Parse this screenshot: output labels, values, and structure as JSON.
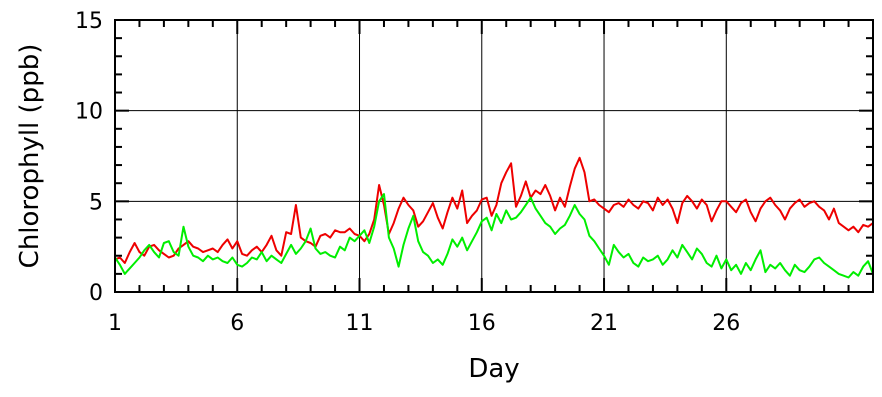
{
  "chart_data": {
    "type": "line",
    "xlabel": "Day",
    "ylabel": "Chlorophyll (ppb)",
    "xlim": [
      1,
      32
    ],
    "ylim": [
      0,
      15
    ],
    "x_ticks": [
      1,
      6,
      11,
      16,
      21,
      26
    ],
    "x_tick_labels": [
      "1",
      "6",
      "11",
      "16",
      "21",
      "26"
    ],
    "y_ticks": [
      0,
      5,
      10,
      15
    ],
    "y_tick_labels": [
      "0",
      "5",
      "10",
      "15"
    ],
    "grid": true,
    "legend": "none",
    "series": [
      {
        "color": "#ee0000",
        "points": [
          [
            1.0,
            1.8
          ],
          [
            1.2,
            1.9
          ],
          [
            1.4,
            1.6
          ],
          [
            1.6,
            2.2
          ],
          [
            1.8,
            2.7
          ],
          [
            2.0,
            2.2
          ],
          [
            2.2,
            2.0
          ],
          [
            2.4,
            2.5
          ],
          [
            2.6,
            2.6
          ],
          [
            2.8,
            2.3
          ],
          [
            3.0,
            2.1
          ],
          [
            3.2,
            1.9
          ],
          [
            3.4,
            2.0
          ],
          [
            3.6,
            2.4
          ],
          [
            3.8,
            2.6
          ],
          [
            4.0,
            2.8
          ],
          [
            4.2,
            2.5
          ],
          [
            4.4,
            2.4
          ],
          [
            4.6,
            2.2
          ],
          [
            4.8,
            2.3
          ],
          [
            5.0,
            2.4
          ],
          [
            5.2,
            2.2
          ],
          [
            5.4,
            2.6
          ],
          [
            5.6,
            2.9
          ],
          [
            5.8,
            2.4
          ],
          [
            6.0,
            2.8
          ],
          [
            6.2,
            2.1
          ],
          [
            6.4,
            2.0
          ],
          [
            6.6,
            2.3
          ],
          [
            6.8,
            2.5
          ],
          [
            7.0,
            2.2
          ],
          [
            7.2,
            2.6
          ],
          [
            7.4,
            3.1
          ],
          [
            7.6,
            2.3
          ],
          [
            7.8,
            2.0
          ],
          [
            8.0,
            3.3
          ],
          [
            8.2,
            3.2
          ],
          [
            8.4,
            4.8
          ],
          [
            8.6,
            3.0
          ],
          [
            8.8,
            2.8
          ],
          [
            9.0,
            2.7
          ],
          [
            9.2,
            2.5
          ],
          [
            9.4,
            3.1
          ],
          [
            9.6,
            3.2
          ],
          [
            9.8,
            3.0
          ],
          [
            10.0,
            3.4
          ],
          [
            10.2,
            3.3
          ],
          [
            10.4,
            3.3
          ],
          [
            10.6,
            3.5
          ],
          [
            10.8,
            3.2
          ],
          [
            11.0,
            3.1
          ],
          [
            11.2,
            2.8
          ],
          [
            11.4,
            3.2
          ],
          [
            11.6,
            4.0
          ],
          [
            11.8,
            5.9
          ],
          [
            12.0,
            4.8
          ],
          [
            12.2,
            3.2
          ],
          [
            12.4,
            3.8
          ],
          [
            12.6,
            4.6
          ],
          [
            12.8,
            5.2
          ],
          [
            13.0,
            4.8
          ],
          [
            13.2,
            4.5
          ],
          [
            13.4,
            3.6
          ],
          [
            13.6,
            3.9
          ],
          [
            13.8,
            4.4
          ],
          [
            14.0,
            4.9
          ],
          [
            14.2,
            4.1
          ],
          [
            14.4,
            3.5
          ],
          [
            14.6,
            4.4
          ],
          [
            14.8,
            5.2
          ],
          [
            15.0,
            4.6
          ],
          [
            15.2,
            5.6
          ],
          [
            15.4,
            3.8
          ],
          [
            15.6,
            4.2
          ],
          [
            15.8,
            4.5
          ],
          [
            16.0,
            5.1
          ],
          [
            16.2,
            5.2
          ],
          [
            16.4,
            4.2
          ],
          [
            16.6,
            4.8
          ],
          [
            16.8,
            6.0
          ],
          [
            17.0,
            6.6
          ],
          [
            17.2,
            7.1
          ],
          [
            17.4,
            4.7
          ],
          [
            17.6,
            5.3
          ],
          [
            17.8,
            6.1
          ],
          [
            18.0,
            5.2
          ],
          [
            18.2,
            5.6
          ],
          [
            18.4,
            5.4
          ],
          [
            18.6,
            5.9
          ],
          [
            18.8,
            5.3
          ],
          [
            19.0,
            4.5
          ],
          [
            19.2,
            5.2
          ],
          [
            19.4,
            4.7
          ],
          [
            19.6,
            5.8
          ],
          [
            19.8,
            6.8
          ],
          [
            20.0,
            7.4
          ],
          [
            20.2,
            6.6
          ],
          [
            20.4,
            5.0
          ],
          [
            20.6,
            5.1
          ],
          [
            20.8,
            4.8
          ],
          [
            21.0,
            4.6
          ],
          [
            21.2,
            4.4
          ],
          [
            21.4,
            4.8
          ],
          [
            21.6,
            4.9
          ],
          [
            21.8,
            4.7
          ],
          [
            22.0,
            5.1
          ],
          [
            22.2,
            4.8
          ],
          [
            22.4,
            4.6
          ],
          [
            22.6,
            5.0
          ],
          [
            22.8,
            4.9
          ],
          [
            23.0,
            4.5
          ],
          [
            23.2,
            5.2
          ],
          [
            23.4,
            4.8
          ],
          [
            23.6,
            5.1
          ],
          [
            23.8,
            4.6
          ],
          [
            24.0,
            3.8
          ],
          [
            24.2,
            4.9
          ],
          [
            24.4,
            5.3
          ],
          [
            24.6,
            5.0
          ],
          [
            24.8,
            4.6
          ],
          [
            25.0,
            5.1
          ],
          [
            25.2,
            4.8
          ],
          [
            25.4,
            3.9
          ],
          [
            25.6,
            4.5
          ],
          [
            25.8,
            5.0
          ],
          [
            26.0,
            5.0
          ],
          [
            26.2,
            4.7
          ],
          [
            26.4,
            4.4
          ],
          [
            26.6,
            4.9
          ],
          [
            26.8,
            5.1
          ],
          [
            27.0,
            4.4
          ],
          [
            27.2,
            3.9
          ],
          [
            27.4,
            4.6
          ],
          [
            27.6,
            5.0
          ],
          [
            27.8,
            5.2
          ],
          [
            28.0,
            4.8
          ],
          [
            28.2,
            4.5
          ],
          [
            28.4,
            4.0
          ],
          [
            28.6,
            4.6
          ],
          [
            28.8,
            4.9
          ],
          [
            29.0,
            5.1
          ],
          [
            29.2,
            4.7
          ],
          [
            29.4,
            4.9
          ],
          [
            29.6,
            5.0
          ],
          [
            29.8,
            4.7
          ],
          [
            30.0,
            4.5
          ],
          [
            30.2,
            4.0
          ],
          [
            30.4,
            4.6
          ],
          [
            30.6,
            3.8
          ],
          [
            30.8,
            3.6
          ],
          [
            31.0,
            3.4
          ],
          [
            31.2,
            3.6
          ],
          [
            31.4,
            3.3
          ],
          [
            31.6,
            3.7
          ],
          [
            31.8,
            3.6
          ],
          [
            32.0,
            3.8
          ]
        ]
      },
      {
        "color": "#00ee00",
        "points": [
          [
            1.0,
            1.9
          ],
          [
            1.2,
            1.5
          ],
          [
            1.4,
            1.0
          ],
          [
            1.6,
            1.3
          ],
          [
            1.8,
            1.6
          ],
          [
            2.0,
            1.9
          ],
          [
            2.2,
            2.3
          ],
          [
            2.4,
            2.6
          ],
          [
            2.6,
            2.2
          ],
          [
            2.8,
            1.9
          ],
          [
            3.0,
            2.7
          ],
          [
            3.2,
            2.8
          ],
          [
            3.4,
            2.2
          ],
          [
            3.6,
            2.0
          ],
          [
            3.8,
            3.6
          ],
          [
            4.0,
            2.5
          ],
          [
            4.2,
            2.0
          ],
          [
            4.4,
            1.9
          ],
          [
            4.6,
            1.7
          ],
          [
            4.8,
            2.0
          ],
          [
            5.0,
            1.8
          ],
          [
            5.2,
            1.9
          ],
          [
            5.4,
            1.7
          ],
          [
            5.6,
            1.6
          ],
          [
            5.8,
            1.9
          ],
          [
            6.0,
            1.5
          ],
          [
            6.2,
            1.4
          ],
          [
            6.4,
            1.6
          ],
          [
            6.6,
            1.9
          ],
          [
            6.8,
            1.8
          ],
          [
            7.0,
            2.2
          ],
          [
            7.2,
            1.7
          ],
          [
            7.4,
            2.0
          ],
          [
            7.6,
            1.8
          ],
          [
            7.8,
            1.6
          ],
          [
            8.0,
            2.1
          ],
          [
            8.2,
            2.6
          ],
          [
            8.4,
            2.1
          ],
          [
            8.6,
            2.4
          ],
          [
            8.8,
            2.8
          ],
          [
            9.0,
            3.5
          ],
          [
            9.2,
            2.4
          ],
          [
            9.4,
            2.1
          ],
          [
            9.6,
            2.2
          ],
          [
            9.8,
            2.0
          ],
          [
            10.0,
            1.9
          ],
          [
            10.2,
            2.5
          ],
          [
            10.4,
            2.3
          ],
          [
            10.6,
            3.0
          ],
          [
            10.8,
            2.8
          ],
          [
            11.0,
            3.1
          ],
          [
            11.2,
            3.4
          ],
          [
            11.4,
            2.7
          ],
          [
            11.6,
            3.6
          ],
          [
            11.8,
            5.0
          ],
          [
            12.0,
            5.4
          ],
          [
            12.2,
            3.0
          ],
          [
            12.4,
            2.4
          ],
          [
            12.6,
            1.4
          ],
          [
            12.8,
            2.6
          ],
          [
            13.0,
            3.5
          ],
          [
            13.2,
            4.2
          ],
          [
            13.4,
            2.8
          ],
          [
            13.6,
            2.2
          ],
          [
            13.8,
            2.0
          ],
          [
            14.0,
            1.6
          ],
          [
            14.2,
            1.8
          ],
          [
            14.4,
            1.5
          ],
          [
            14.6,
            2.1
          ],
          [
            14.8,
            2.9
          ],
          [
            15.0,
            2.5
          ],
          [
            15.2,
            3.0
          ],
          [
            15.4,
            2.3
          ],
          [
            15.6,
            2.8
          ],
          [
            15.8,
            3.3
          ],
          [
            16.0,
            3.9
          ],
          [
            16.2,
            4.1
          ],
          [
            16.4,
            3.4
          ],
          [
            16.6,
            4.3
          ],
          [
            16.8,
            3.8
          ],
          [
            17.0,
            4.5
          ],
          [
            17.2,
            4.0
          ],
          [
            17.4,
            4.1
          ],
          [
            17.6,
            4.4
          ],
          [
            17.8,
            4.8
          ],
          [
            18.0,
            5.2
          ],
          [
            18.2,
            4.6
          ],
          [
            18.4,
            4.2
          ],
          [
            18.6,
            3.8
          ],
          [
            18.8,
            3.6
          ],
          [
            19.0,
            3.2
          ],
          [
            19.2,
            3.5
          ],
          [
            19.4,
            3.7
          ],
          [
            19.6,
            4.2
          ],
          [
            19.8,
            4.8
          ],
          [
            20.0,
            4.3
          ],
          [
            20.2,
            4.0
          ],
          [
            20.4,
            3.1
          ],
          [
            20.6,
            2.8
          ],
          [
            20.8,
            2.4
          ],
          [
            21.0,
            2.0
          ],
          [
            21.2,
            1.5
          ],
          [
            21.4,
            2.6
          ],
          [
            21.6,
            2.2
          ],
          [
            21.8,
            1.9
          ],
          [
            22.0,
            2.1
          ],
          [
            22.2,
            1.6
          ],
          [
            22.4,
            1.4
          ],
          [
            22.6,
            1.9
          ],
          [
            22.8,
            1.7
          ],
          [
            23.0,
            1.8
          ],
          [
            23.2,
            2.0
          ],
          [
            23.4,
            1.5
          ],
          [
            23.6,
            1.8
          ],
          [
            23.8,
            2.3
          ],
          [
            24.0,
            1.9
          ],
          [
            24.2,
            2.6
          ],
          [
            24.4,
            2.2
          ],
          [
            24.6,
            1.8
          ],
          [
            24.8,
            2.4
          ],
          [
            25.0,
            2.1
          ],
          [
            25.2,
            1.6
          ],
          [
            25.4,
            1.4
          ],
          [
            25.6,
            2.0
          ],
          [
            25.8,
            1.3
          ],
          [
            26.0,
            1.8
          ],
          [
            26.2,
            1.2
          ],
          [
            26.4,
            1.5
          ],
          [
            26.6,
            1.0
          ],
          [
            26.8,
            1.6
          ],
          [
            27.0,
            1.2
          ],
          [
            27.2,
            1.8
          ],
          [
            27.4,
            2.3
          ],
          [
            27.6,
            1.1
          ],
          [
            27.8,
            1.5
          ],
          [
            28.0,
            1.3
          ],
          [
            28.2,
            1.6
          ],
          [
            28.4,
            1.2
          ],
          [
            28.6,
            0.9
          ],
          [
            28.8,
            1.5
          ],
          [
            29.0,
            1.2
          ],
          [
            29.2,
            1.1
          ],
          [
            29.4,
            1.4
          ],
          [
            29.6,
            1.8
          ],
          [
            29.8,
            1.9
          ],
          [
            30.0,
            1.6
          ],
          [
            30.2,
            1.4
          ],
          [
            30.4,
            1.2
          ],
          [
            30.6,
            1.0
          ],
          [
            30.8,
            0.9
          ],
          [
            31.0,
            0.8
          ],
          [
            31.2,
            1.1
          ],
          [
            31.4,
            0.9
          ],
          [
            31.6,
            1.4
          ],
          [
            31.8,
            1.7
          ],
          [
            32.0,
            1.0
          ]
        ]
      }
    ]
  }
}
